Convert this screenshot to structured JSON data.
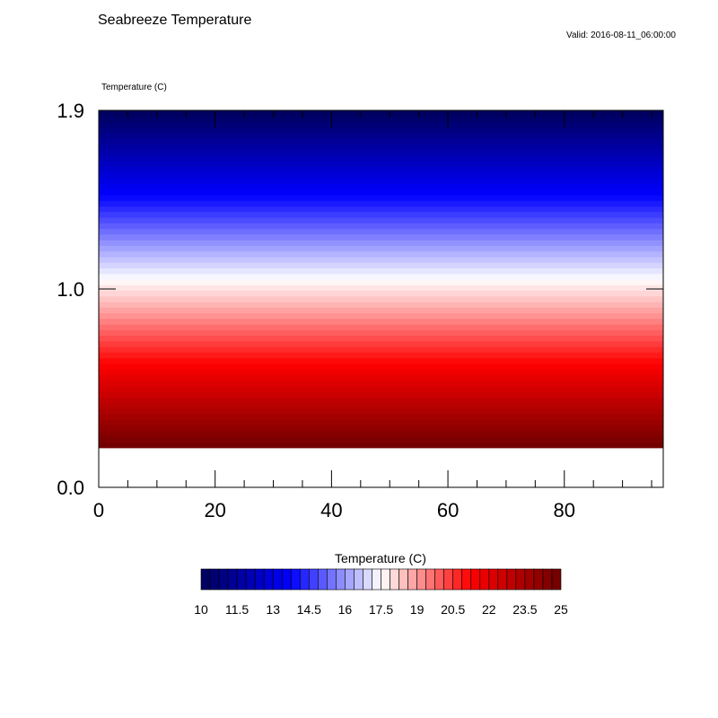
{
  "chart_data": {
    "type": "heatmap",
    "title": "Seabreeze Temperature",
    "subtitle": "Valid: 2016-08-11_06:00:00",
    "field_label": "Temperature   (C)",
    "xlabel": "",
    "ylabel": "",
    "x_range": [
      0,
      97
    ],
    "y_range": [
      0.0,
      1.9
    ],
    "x_ticks": [
      0,
      20,
      40,
      60,
      80
    ],
    "x_tick_labels": [
      "0",
      "20",
      "40",
      "60",
      "80"
    ],
    "y_ticks": [
      0.0,
      1.0,
      1.9
    ],
    "y_tick_labels": [
      "0.0",
      "1.0",
      "1.9"
    ],
    "data_y_range": [
      0.2,
      1.9
    ],
    "value_range": [
      10,
      25
    ],
    "gradient_note_values": {
      "bottom": 25,
      "top": 10
    },
    "grid": false,
    "colorbar": {
      "title": "Temperature  (C)",
      "min": 10,
      "max": 25,
      "step": 0.375,
      "tick_values": [
        10,
        11.5,
        13,
        14.5,
        16,
        17.5,
        19,
        20.5,
        22,
        23.5,
        25
      ],
      "tick_labels": [
        "10",
        "11.5",
        "13",
        "14.5",
        "16",
        "17.5",
        "19",
        "20.5",
        "22",
        "23.5",
        "25"
      ],
      "placement": "bottom"
    },
    "colormap": {
      "name": "blue-white-red",
      "stops": [
        "#00005a",
        "#0000ff",
        "#ffffff",
        "#ff0000",
        "#6e0000"
      ]
    }
  }
}
